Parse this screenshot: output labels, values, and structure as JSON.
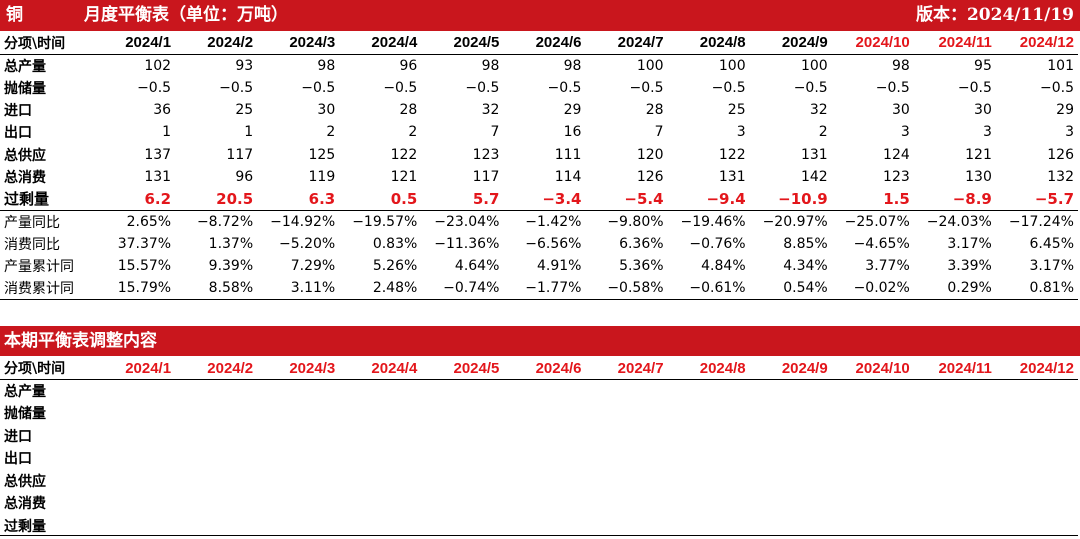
{
  "header": {
    "metal": "铜",
    "title": "月度平衡表（单位：万吨）",
    "version": "版本：2024/11/19"
  },
  "months": [
    "2024/1",
    "2024/2",
    "2024/3",
    "2024/4",
    "2024/5",
    "2024/6",
    "2024/7",
    "2024/8",
    "2024/9",
    "2024/10",
    "2024/11",
    "2024/12"
  ],
  "col_header": "分项\\时间",
  "colors": {
    "bar": "#c9161d",
    "highlight": "#e3161b"
  },
  "balance_rows": [
    {
      "label": "总产量",
      "values": [
        "102",
        "93",
        "98",
        "96",
        "98",
        "98",
        "100",
        "100",
        "100",
        "98",
        "95",
        "101"
      ]
    },
    {
      "label": "抛储量",
      "values": [
        "−0.5",
        "−0.5",
        "−0.5",
        "−0.5",
        "−0.5",
        "−0.5",
        "−0.5",
        "−0.5",
        "−0.5",
        "−0.5",
        "−0.5",
        "−0.5"
      ]
    },
    {
      "label": "进口",
      "values": [
        "36",
        "25",
        "30",
        "28",
        "32",
        "29",
        "28",
        "25",
        "32",
        "30",
        "30",
        "29"
      ]
    },
    {
      "label": "出口",
      "values": [
        "1",
        "1",
        "2",
        "2",
        "7",
        "16",
        "7",
        "3",
        "2",
        "3",
        "3",
        "3"
      ]
    },
    {
      "label": "总供应",
      "values": [
        "137",
        "117",
        "125",
        "122",
        "123",
        "111",
        "120",
        "122",
        "131",
        "124",
        "121",
        "126"
      ]
    },
    {
      "label": "总消费",
      "values": [
        "131",
        "96",
        "119",
        "121",
        "117",
        "114",
        "126",
        "131",
        "142",
        "123",
        "130",
        "132"
      ]
    },
    {
      "label": "过剩量",
      "values": [
        "6.2",
        "20.5",
        "6.3",
        "0.5",
        "5.7",
        "−3.4",
        "−5.4",
        "−9.4",
        "−10.9",
        "1.5",
        "−8.9",
        "−5.7"
      ]
    }
  ],
  "ratio_rows": [
    {
      "label": "产量同比",
      "values": [
        "2.65%",
        "−8.72%",
        "−14.92%",
        "−19.57%",
        "−23.04%",
        "−1.42%",
        "−9.80%",
        "−19.46%",
        "−20.97%",
        "−25.07%",
        "−24.03%",
        "−17.24%"
      ]
    },
    {
      "label": "消费同比",
      "values": [
        "37.37%",
        "1.37%",
        "−5.20%",
        "0.83%",
        "−11.36%",
        "−6.56%",
        "6.36%",
        "−0.76%",
        "8.85%",
        "−4.65%",
        "3.17%",
        "6.45%"
      ]
    },
    {
      "label": "产量累计同",
      "values": [
        "15.57%",
        "9.39%",
        "7.29%",
        "5.26%",
        "4.64%",
        "4.91%",
        "5.36%",
        "4.84%",
        "4.34%",
        "3.77%",
        "3.39%",
        "3.17%"
      ]
    },
    {
      "label": "消费累计同",
      "values": [
        "15.79%",
        "8.58%",
        "3.11%",
        "2.48%",
        "−0.74%",
        "−1.77%",
        "−0.58%",
        "−0.61%",
        "0.54%",
        "−0.02%",
        "0.29%",
        "0.81%"
      ]
    }
  ],
  "adjust": {
    "title": "本期平衡表调整内容",
    "rows": [
      "总产量",
      "抛储量",
      "进口",
      "出口",
      "总供应",
      "总消费",
      "过剩量"
    ]
  }
}
